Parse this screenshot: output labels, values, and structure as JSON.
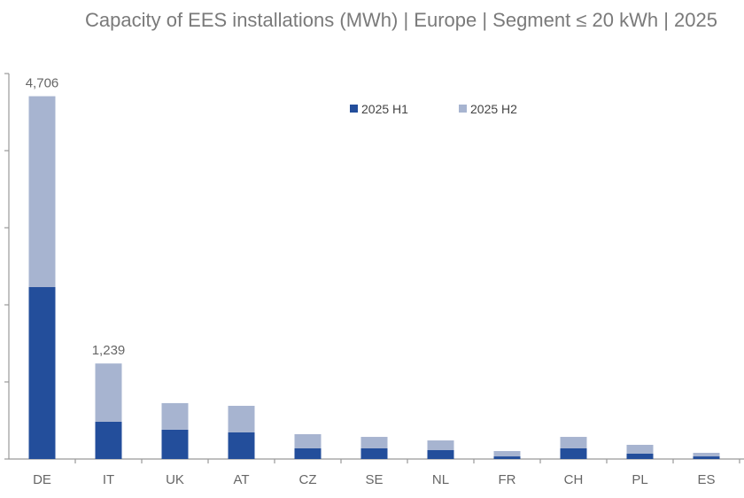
{
  "chart_data": {
    "type": "bar",
    "stacked": true,
    "title": "Capacity of EES installations (MWh) | Europe | Segment ≤ 20 kWh | 2025",
    "categories": [
      "DE",
      "IT",
      "UK",
      "AT",
      "CZ",
      "SE",
      "NL",
      "FR",
      "CH",
      "PL",
      "ES"
    ],
    "series": [
      {
        "name": "2025 H1",
        "color": "#234e9b",
        "values": [
          2230,
          483,
          380,
          345,
          138,
          138,
          115,
          34,
          138,
          69,
          34
        ]
      },
      {
        "name": "2025 H2",
        "color": "#a7b4d0",
        "values": [
          2476,
          756,
          345,
          345,
          184,
          149,
          126,
          69,
          149,
          115,
          46
        ]
      }
    ],
    "data_labels": [
      {
        "category": "DE",
        "text": "4,706"
      },
      {
        "category": "IT",
        "text": "1,239"
      }
    ],
    "ylim": [
      0,
      5000
    ],
    "ytick_step": 1000,
    "grid": false,
    "legend_placement": "top-center"
  }
}
